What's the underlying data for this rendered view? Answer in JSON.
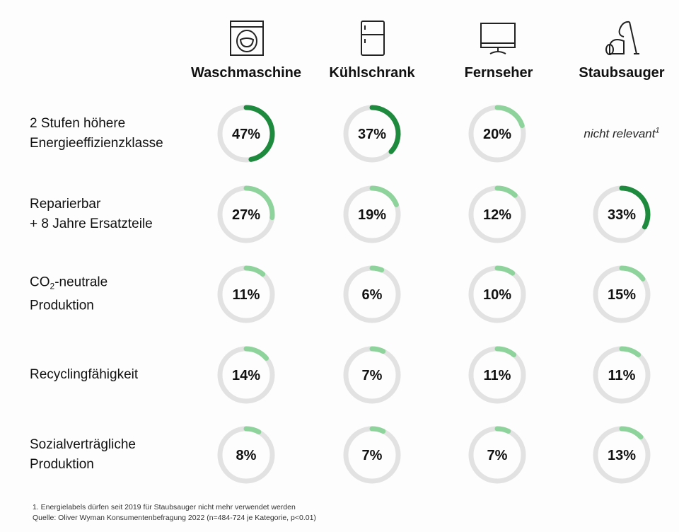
{
  "chart_data": {
    "type": "donut-grid",
    "columns": [
      "Waschmaschine",
      "Kühlschrank",
      "Fernseher",
      "Staubsauger"
    ],
    "column_icons": [
      "washing-machine-icon",
      "refrigerator-icon",
      "tv-icon",
      "vacuum-cleaner-icon"
    ],
    "rows": [
      {
        "label_lines": [
          "2 Stufen höhere",
          "Energieeffizienzklasse"
        ],
        "values": [
          47,
          37,
          20,
          null
        ]
      },
      {
        "label_lines": [
          "Reparierbar",
          "+ 8 Jahre Ersatzteile"
        ],
        "values": [
          27,
          19,
          12,
          33
        ]
      },
      {
        "label_lines": [
          "CO2-neutrale",
          "Produktion"
        ],
        "values": [
          11,
          6,
          10,
          15
        ]
      },
      {
        "label_lines": [
          "Recyclingfähigkeit"
        ],
        "values": [
          14,
          7,
          11,
          11
        ]
      },
      {
        "label_lines": [
          "Sozialverträgliche",
          "Produktion"
        ],
        "values": [
          8,
          7,
          7,
          13
        ]
      }
    ],
    "value_unit": "%",
    "not_relevant_label": "nicht relevant",
    "not_relevant_footnote_marker": "1",
    "highlight_threshold": 30,
    "colors": {
      "highlight": "#1e8a3e",
      "normal": "#8ed39b",
      "track": "#e2e2e2"
    }
  },
  "row_label_parts": {
    "co2_prefix": "CO",
    "co2_sub": "2",
    "co2_suffix": "-neutrale"
  },
  "footnotes": [
    "1. Energielabels dürfen seit 2019 für Staubsauger nicht mehr verwendet werden",
    "Quelle: Oliver Wyman Konsumentenbefragung 2022 (n=484-724 je Kategorie, p<0.01)"
  ]
}
